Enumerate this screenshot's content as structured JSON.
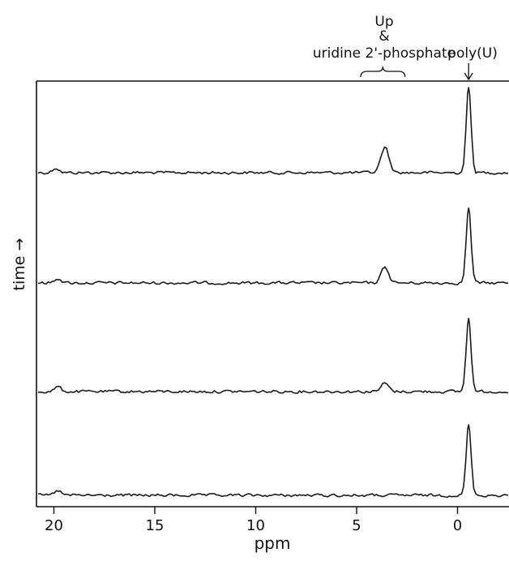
{
  "chart_data": {
    "type": "line",
    "title": "",
    "xlabel": "ppm",
    "ylabel": "time →",
    "xlim": [
      21,
      -2.5
    ],
    "x_inverted": true,
    "xticks": [
      20,
      15,
      10,
      5,
      0
    ],
    "xtick_labels": [
      "20",
      "15",
      "10",
      "5",
      "0"
    ],
    "grid": false,
    "legend": "none",
    "series": [
      {
        "peaks": [
          {
            "ppm": -0.55,
            "height": 1.0,
            "width": 0.12
          },
          {
            "ppm": 3.6,
            "height": 0.3,
            "width": 0.2
          }
        ],
        "noise_bumps": [
          19.9
        ]
      },
      {
        "peaks": [
          {
            "ppm": -0.55,
            "height": 0.88,
            "width": 0.12
          },
          {
            "ppm": 3.6,
            "height": 0.19,
            "width": 0.18
          }
        ],
        "noise_bumps": [
          19.8
        ]
      },
      {
        "peaks": [
          {
            "ppm": -0.55,
            "height": 0.86,
            "width": 0.12
          },
          {
            "ppm": 3.6,
            "height": 0.1,
            "width": 0.18
          }
        ],
        "noise_bumps": [
          19.8
        ]
      },
      {
        "peaks": [
          {
            "ppm": -0.55,
            "height": 0.83,
            "width": 0.12
          }
        ],
        "noise_bumps": [
          19.8
        ]
      }
    ],
    "annotations": [
      {
        "lines": [
          "Up",
          "&",
          "uridine 2'-phosphate"
        ],
        "ppm_range": [
          4.8,
          2.6
        ],
        "marker": "brace"
      },
      {
        "lines": [
          "poly(U)"
        ],
        "ppm": -0.55,
        "marker": "arrow"
      }
    ]
  }
}
